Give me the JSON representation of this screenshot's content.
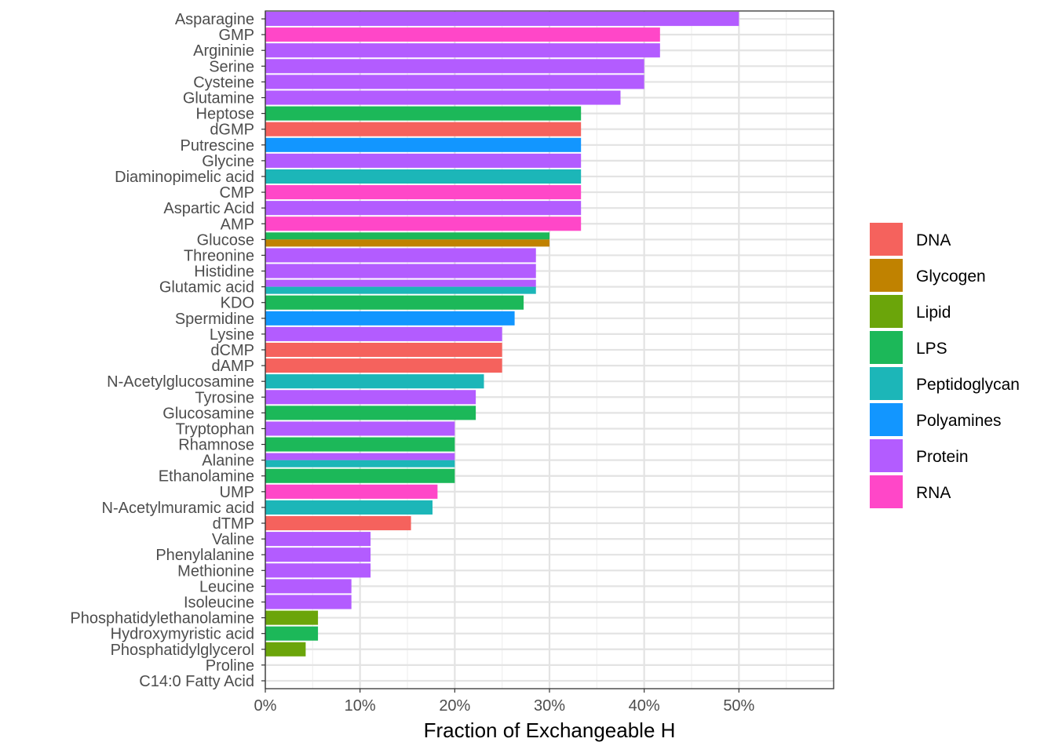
{
  "chart_data": {
    "type": "bar",
    "orientation": "horizontal",
    "xlabel": "Fraction of Exchangeable H",
    "ylabel": "",
    "xlim": [
      0,
      0.6
    ],
    "x_ticks": [
      0,
      0.1,
      0.2,
      0.3,
      0.4,
      0.5
    ],
    "x_tick_labels": [
      "0%",
      "10%",
      "20%",
      "30%",
      "40%",
      "50%"
    ],
    "grid": true,
    "legend_position": "right",
    "categories": [
      "Asparagine",
      "GMP",
      "Argininie",
      "Serine",
      "Cysteine",
      "Glutamine",
      "Heptose",
      "dGMP",
      "Putrescine",
      "Glycine",
      "Diaminopimelic acid",
      "CMP",
      "Aspartic Acid",
      "AMP",
      "Glucose",
      "Threonine",
      "Histidine",
      "Glutamic acid",
      "KDO",
      "Spermidine",
      "Lysine",
      "dCMP",
      "dAMP",
      "N-Acetylglucosamine",
      "Tyrosine",
      "Glucosamine",
      "Tryptophan",
      "Rhamnose",
      "Alanine",
      "Ethanolamine",
      "UMP",
      "N-Acetylmuramic acid",
      "dTMP",
      "Valine",
      "Phenylalanine",
      "Methionine",
      "Leucine",
      "Isoleucine",
      "Phosphatidylethanolamine",
      "Hydroxymyristic acid",
      "Phosphatidylglycerol",
      "Proline",
      "C14:0 Fatty Acid"
    ],
    "bars": [
      {
        "category": "Asparagine",
        "value": 0.5,
        "groups": [
          "Protein"
        ]
      },
      {
        "category": "GMP",
        "value": 0.4167,
        "groups": [
          "RNA"
        ]
      },
      {
        "category": "Argininie",
        "value": 0.4167,
        "groups": [
          "Protein"
        ]
      },
      {
        "category": "Serine",
        "value": 0.4,
        "groups": [
          "Protein"
        ]
      },
      {
        "category": "Cysteine",
        "value": 0.4,
        "groups": [
          "Protein"
        ]
      },
      {
        "category": "Glutamine",
        "value": 0.375,
        "groups": [
          "Protein"
        ]
      },
      {
        "category": "Heptose",
        "value": 0.3333,
        "groups": [
          "LPS"
        ]
      },
      {
        "category": "dGMP",
        "value": 0.3333,
        "groups": [
          "DNA"
        ]
      },
      {
        "category": "Putrescine",
        "value": 0.3333,
        "groups": [
          "Polyamines"
        ]
      },
      {
        "category": "Glycine",
        "value": 0.3333,
        "groups": [
          "Protein"
        ]
      },
      {
        "category": "Diaminopimelic acid",
        "value": 0.3333,
        "groups": [
          "Peptidoglycan"
        ]
      },
      {
        "category": "CMP",
        "value": 0.3333,
        "groups": [
          "RNA"
        ]
      },
      {
        "category": "Aspartic Acid",
        "value": 0.3333,
        "groups": [
          "Protein"
        ]
      },
      {
        "category": "AMP",
        "value": 0.3333,
        "groups": [
          "RNA"
        ]
      },
      {
        "category": "Glucose",
        "value": 0.3,
        "groups": [
          "LPS",
          "Glycogen"
        ]
      },
      {
        "category": "Threonine",
        "value": 0.2857,
        "groups": [
          "Protein"
        ]
      },
      {
        "category": "Histidine",
        "value": 0.2857,
        "groups": [
          "Protein"
        ]
      },
      {
        "category": "Glutamic acid",
        "value": 0.2857,
        "groups": [
          "Protein",
          "Peptidoglycan"
        ]
      },
      {
        "category": "KDO",
        "value": 0.2727,
        "groups": [
          "LPS"
        ]
      },
      {
        "category": "Spermidine",
        "value": 0.2632,
        "groups": [
          "Polyamines"
        ]
      },
      {
        "category": "Lysine",
        "value": 0.25,
        "groups": [
          "Protein"
        ]
      },
      {
        "category": "dCMP",
        "value": 0.25,
        "groups": [
          "DNA"
        ]
      },
      {
        "category": "dAMP",
        "value": 0.25,
        "groups": [
          "DNA"
        ]
      },
      {
        "category": "N-Acetylglucosamine",
        "value": 0.2308,
        "groups": [
          "Peptidoglycan"
        ]
      },
      {
        "category": "Tyrosine",
        "value": 0.2222,
        "groups": [
          "Protein"
        ]
      },
      {
        "category": "Glucosamine",
        "value": 0.2222,
        "groups": [
          "LPS"
        ]
      },
      {
        "category": "Tryptophan",
        "value": 0.2,
        "groups": [
          "Protein"
        ]
      },
      {
        "category": "Rhamnose",
        "value": 0.2,
        "groups": [
          "LPS"
        ]
      },
      {
        "category": "Alanine",
        "value": 0.2,
        "groups": [
          "Protein",
          "Peptidoglycan"
        ]
      },
      {
        "category": "Ethanolamine",
        "value": 0.2,
        "groups": [
          "LPS"
        ]
      },
      {
        "category": "UMP",
        "value": 0.1818,
        "groups": [
          "RNA"
        ]
      },
      {
        "category": "N-Acetylmuramic acid",
        "value": 0.1765,
        "groups": [
          "Peptidoglycan"
        ]
      },
      {
        "category": "dTMP",
        "value": 0.1538,
        "groups": [
          "DNA"
        ]
      },
      {
        "category": "Valine",
        "value": 0.1111,
        "groups": [
          "Protein"
        ]
      },
      {
        "category": "Phenylalanine",
        "value": 0.1111,
        "groups": [
          "Protein"
        ]
      },
      {
        "category": "Methionine",
        "value": 0.1111,
        "groups": [
          "Protein"
        ]
      },
      {
        "category": "Leucine",
        "value": 0.0909,
        "groups": [
          "Protein"
        ]
      },
      {
        "category": "Isoleucine",
        "value": 0.0909,
        "groups": [
          "Protein"
        ]
      },
      {
        "category": "Phosphatidylethanolamine",
        "value": 0.0556,
        "groups": [
          "Lipid"
        ]
      },
      {
        "category": "Hydroxymyristic acid",
        "value": 0.0556,
        "groups": [
          "LPS"
        ]
      },
      {
        "category": "Phosphatidylglycerol",
        "value": 0.0426,
        "groups": [
          "Lipid"
        ]
      },
      {
        "category": "Proline",
        "value": 0,
        "groups": [
          "Protein"
        ]
      },
      {
        "category": "C14:0 Fatty Acid",
        "value": 0,
        "groups": [
          "Lipid"
        ]
      }
    ],
    "legend": [
      {
        "name": "DNA",
        "color": "#F8766D"
      },
      {
        "name": "Glycogen",
        "color": "#C49A00"
      },
      {
        "name": "Lipid",
        "color": "#53B400"
      },
      {
        "name": "LPS",
        "color": "#00C094"
      },
      {
        "name": "Peptidoglycan",
        "color": "#00B6EB"
      },
      {
        "name": "Polyamines",
        "color": "#06A4FF"
      },
      {
        "name": "Protein",
        "color": "#A58AFF"
      },
      {
        "name": "RNA",
        "color": "#FB61D7"
      }
    ],
    "render_colors": {
      "DNA": "#F5625D",
      "Glycogen": "#C08200",
      "Lipid": "#6BA50A",
      "LPS": "#1CB859",
      "Peptidoglycan": "#1CB6B8",
      "Polyamines": "#1296FF",
      "Protein": "#B35CFF",
      "RNA": "#FF47C8"
    }
  }
}
